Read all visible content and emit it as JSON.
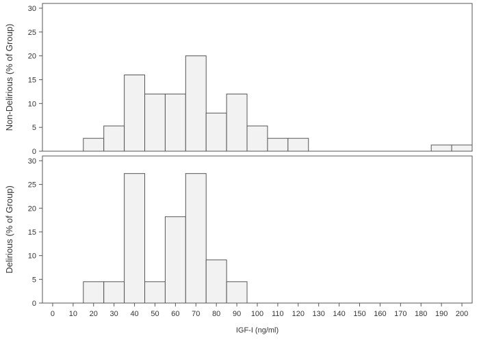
{
  "chart_data": {
    "type": "bar",
    "xlabel": "IGF-I (ng/ml)",
    "xlim": [
      -5,
      205
    ],
    "xticks": [
      0,
      10,
      20,
      30,
      40,
      50,
      60,
      70,
      80,
      90,
      100,
      110,
      120,
      130,
      140,
      150,
      160,
      170,
      180,
      190,
      200
    ],
    "bin_width": 10,
    "colors": {
      "bar_fill": "#f2f2f2",
      "bar_stroke": "#555555",
      "frame": "#555555"
    },
    "panels": [
      {
        "ylabel": "Non-Delirious (% of Group)",
        "ylim": [
          0,
          31
        ],
        "yticks": [
          0,
          5,
          10,
          15,
          20,
          25,
          30
        ],
        "bars": [
          {
            "center": 20,
            "value": 2.7
          },
          {
            "center": 30,
            "value": 5.3
          },
          {
            "center": 40,
            "value": 16.0
          },
          {
            "center": 50,
            "value": 12.0
          },
          {
            "center": 60,
            "value": 12.0
          },
          {
            "center": 70,
            "value": 20.0
          },
          {
            "center": 80,
            "value": 8.0
          },
          {
            "center": 90,
            "value": 12.0
          },
          {
            "center": 100,
            "value": 5.3
          },
          {
            "center": 110,
            "value": 2.7
          },
          {
            "center": 120,
            "value": 2.7
          },
          {
            "center": 190,
            "value": 1.3
          },
          {
            "center": 200,
            "value": 1.3
          }
        ]
      },
      {
        "ylabel": "Delirious (% of Group)",
        "ylim": [
          0,
          31
        ],
        "yticks": [
          0,
          5,
          10,
          15,
          20,
          25,
          30
        ],
        "bars": [
          {
            "center": 20,
            "value": 4.5
          },
          {
            "center": 30,
            "value": 4.5
          },
          {
            "center": 40,
            "value": 27.3
          },
          {
            "center": 50,
            "value": 4.5
          },
          {
            "center": 60,
            "value": 18.2
          },
          {
            "center": 70,
            "value": 27.3
          },
          {
            "center": 80,
            "value": 9.1
          },
          {
            "center": 90,
            "value": 4.5
          }
        ]
      }
    ]
  }
}
